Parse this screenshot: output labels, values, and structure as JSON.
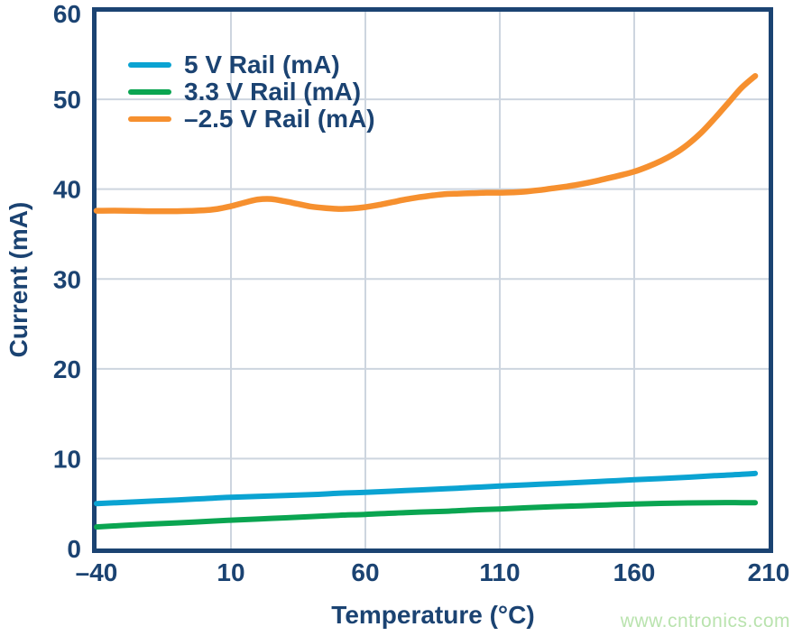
{
  "watermark": "www.cntronics.com",
  "colors": {
    "navy": "#1b4372",
    "grid": "#cdd5df",
    "background": "#ffffff",
    "watermark_green": "#b9e3ae"
  },
  "chart_data": {
    "type": "line",
    "title": "",
    "xlabel": "Temperature (°C)",
    "ylabel": "Current (mA)",
    "xlim": [
      -40,
      210
    ],
    "ylim": [
      0,
      60
    ],
    "x_ticks": [
      -40,
      10,
      60,
      110,
      160,
      210
    ],
    "x_tick_labels": [
      "–40",
      "10",
      "60",
      "110",
      "160",
      "210"
    ],
    "y_ticks": [
      0,
      10,
      20,
      30,
      40,
      50,
      60
    ],
    "y_tick_labels": [
      "0",
      "10",
      "20",
      "30",
      "40",
      "50",
      "60"
    ],
    "grid": true,
    "legend_position": "upper-left",
    "series": [
      {
        "name": "5 V Rail (mA)",
        "slug": "5v-rail",
        "color": "#0ba3d2",
        "line_width": 6,
        "points": [
          [
            -40,
            5.0
          ],
          [
            -25,
            5.2
          ],
          [
            -10,
            5.4
          ],
          [
            0,
            5.55
          ],
          [
            10,
            5.7
          ],
          [
            25,
            5.85
          ],
          [
            40,
            6.0
          ],
          [
            50,
            6.15
          ],
          [
            60,
            6.25
          ],
          [
            75,
            6.45
          ],
          [
            90,
            6.65
          ],
          [
            100,
            6.8
          ],
          [
            110,
            6.95
          ],
          [
            125,
            7.15
          ],
          [
            140,
            7.35
          ],
          [
            150,
            7.5
          ],
          [
            160,
            7.65
          ],
          [
            175,
            7.85
          ],
          [
            190,
            8.1
          ],
          [
            200,
            8.25
          ],
          [
            205,
            8.35
          ]
        ]
      },
      {
        "name": "3.3 V Rail (mA)",
        "slug": "3v3-rail",
        "color": "#0aa551",
        "line_width": 6,
        "points": [
          [
            -40,
            2.4
          ],
          [
            -25,
            2.65
          ],
          [
            -10,
            2.85
          ],
          [
            0,
            3.0
          ],
          [
            10,
            3.15
          ],
          [
            25,
            3.35
          ],
          [
            40,
            3.55
          ],
          [
            50,
            3.7
          ],
          [
            60,
            3.8
          ],
          [
            75,
            4.0
          ],
          [
            90,
            4.15
          ],
          [
            100,
            4.3
          ],
          [
            110,
            4.4
          ],
          [
            125,
            4.6
          ],
          [
            140,
            4.75
          ],
          [
            150,
            4.85
          ],
          [
            160,
            4.95
          ],
          [
            175,
            5.05
          ],
          [
            190,
            5.1
          ],
          [
            200,
            5.1
          ],
          [
            205,
            5.1
          ]
        ]
      },
      {
        "name": "–2.5 V Rail (mA)",
        "slug": "neg2v5-rail",
        "color": "#f6902f",
        "line_width": 6.5,
        "points": [
          [
            -40,
            37.6
          ],
          [
            -30,
            37.6
          ],
          [
            -20,
            37.55
          ],
          [
            -10,
            37.55
          ],
          [
            0,
            37.65
          ],
          [
            5,
            37.8
          ],
          [
            10,
            38.1
          ],
          [
            15,
            38.5
          ],
          [
            20,
            38.85
          ],
          [
            25,
            38.9
          ],
          [
            30,
            38.65
          ],
          [
            35,
            38.35
          ],
          [
            40,
            38.05
          ],
          [
            45,
            37.9
          ],
          [
            50,
            37.8
          ],
          [
            55,
            37.85
          ],
          [
            60,
            38.0
          ],
          [
            65,
            38.25
          ],
          [
            70,
            38.55
          ],
          [
            75,
            38.85
          ],
          [
            80,
            39.1
          ],
          [
            85,
            39.3
          ],
          [
            90,
            39.45
          ],
          [
            95,
            39.5
          ],
          [
            100,
            39.55
          ],
          [
            105,
            39.6
          ],
          [
            110,
            39.6
          ],
          [
            115,
            39.65
          ],
          [
            120,
            39.75
          ],
          [
            125,
            39.9
          ],
          [
            130,
            40.1
          ],
          [
            135,
            40.3
          ],
          [
            140,
            40.55
          ],
          [
            145,
            40.85
          ],
          [
            150,
            41.2
          ],
          [
            155,
            41.55
          ],
          [
            160,
            41.95
          ],
          [
            165,
            42.5
          ],
          [
            170,
            43.15
          ],
          [
            175,
            43.95
          ],
          [
            180,
            45.0
          ],
          [
            185,
            46.3
          ],
          [
            190,
            47.9
          ],
          [
            195,
            49.6
          ],
          [
            200,
            51.3
          ],
          [
            205,
            52.6
          ]
        ]
      }
    ]
  }
}
